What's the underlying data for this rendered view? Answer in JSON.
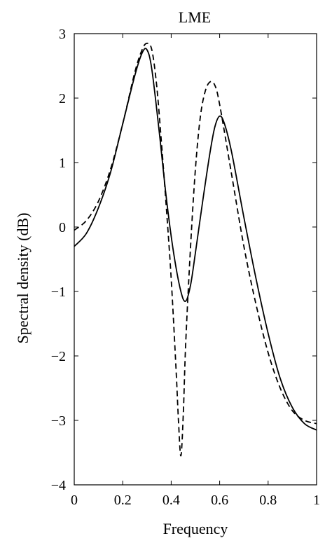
{
  "chart_data": {
    "type": "line",
    "title": "LME",
    "xlabel": "Frequency",
    "ylabel": "Spectral density (dB)",
    "xlim": [
      0,
      1
    ],
    "ylim": [
      -4,
      3
    ],
    "grid": false,
    "legend": "none",
    "xticks": [
      0,
      0.2,
      0.4,
      0.6,
      0.8,
      1
    ],
    "xtick_labels": [
      "0",
      "0.2",
      "0.4",
      "0.6",
      "0.8",
      "1"
    ],
    "yticks": [
      -4,
      -3,
      -2,
      -1,
      0,
      1,
      2,
      3
    ],
    "ytick_labels": [
      "−4",
      "−3",
      "−2",
      "−1",
      "0",
      "1",
      "2",
      "3"
    ],
    "series": [
      {
        "style": "solid",
        "color": "#000000",
        "x": [
          0,
          0.05,
          0.1,
          0.15,
          0.2,
          0.25,
          0.28,
          0.3,
          0.32,
          0.35,
          0.38,
          0.41,
          0.44,
          0.46,
          0.48,
          0.5,
          0.53,
          0.56,
          0.58,
          0.6,
          0.62,
          0.65,
          0.7,
          0.75,
          0.8,
          0.85,
          0.9,
          0.95,
          1.0
        ],
        "y": [
          -0.3,
          -0.1,
          0.3,
          0.85,
          1.6,
          2.35,
          2.7,
          2.75,
          2.45,
          1.5,
          0.45,
          -0.4,
          -1.0,
          -1.15,
          -0.9,
          -0.4,
          0.4,
          1.15,
          1.55,
          1.72,
          1.6,
          1.15,
          0.15,
          -0.8,
          -1.65,
          -2.35,
          -2.8,
          -3.05,
          -3.15
        ]
      },
      {
        "style": "dashed",
        "color": "#000000",
        "x": [
          0,
          0.05,
          0.1,
          0.15,
          0.2,
          0.25,
          0.28,
          0.3,
          0.32,
          0.34,
          0.36,
          0.38,
          0.4,
          0.42,
          0.43,
          0.44,
          0.45,
          0.46,
          0.48,
          0.5,
          0.52,
          0.54,
          0.56,
          0.58,
          0.6,
          0.65,
          0.7,
          0.75,
          0.8,
          0.85,
          0.9,
          0.95,
          1.0
        ],
        "y": [
          -0.05,
          0.1,
          0.4,
          0.9,
          1.6,
          2.4,
          2.75,
          2.85,
          2.75,
          2.2,
          1.3,
          0.3,
          -0.8,
          -2.2,
          -3.0,
          -3.55,
          -2.9,
          -1.8,
          -0.3,
          0.9,
          1.7,
          2.1,
          2.25,
          2.2,
          1.9,
          0.8,
          -0.3,
          -1.2,
          -1.95,
          -2.5,
          -2.85,
          -3.0,
          -3.05
        ]
      }
    ]
  }
}
